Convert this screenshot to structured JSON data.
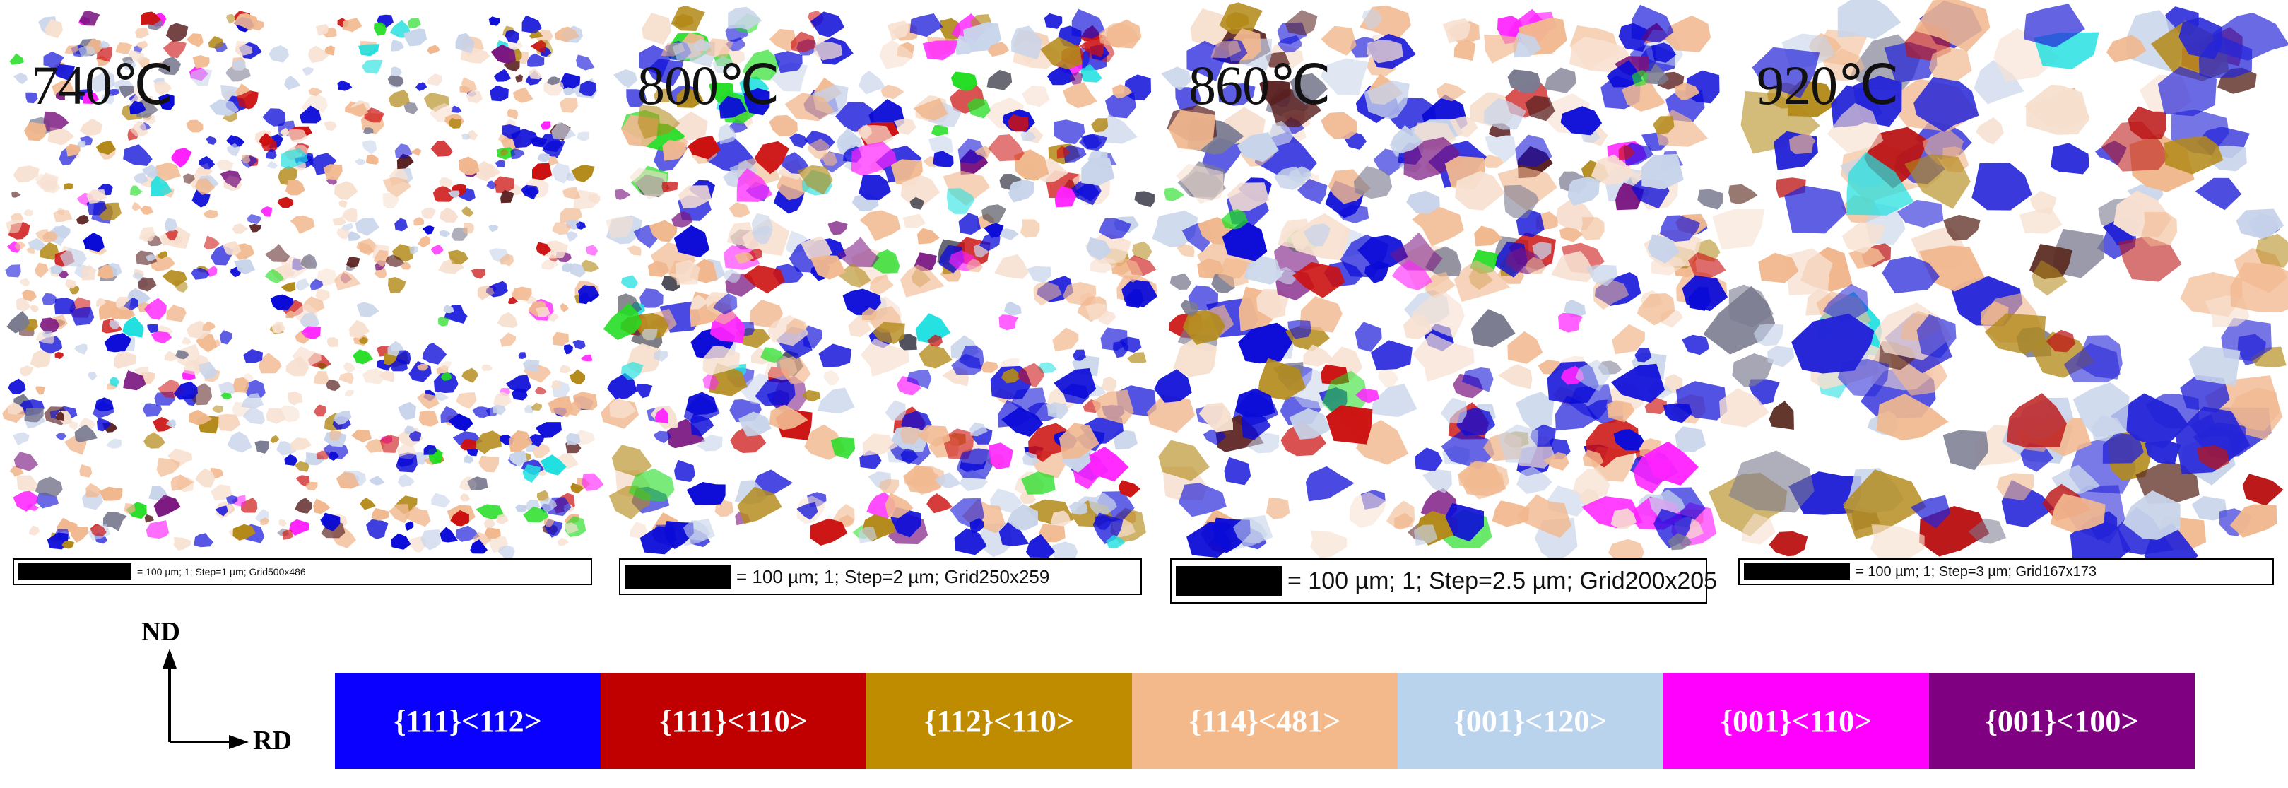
{
  "panels": [
    {
      "label": "740℃",
      "scale_text": "= 100 µm; 1; Step=1 µm; Grid500x486",
      "colors": {
        "#0b0bd8": 0.14,
        "#f1b88f": 0.14,
        "#c8d4ea": 0.1,
        "#cc1111": 0.04,
        "#b38a1a": 0.04,
        "#ff22ff": 0.02,
        "#7a1580": 0.02,
        "#22dd22": 0.01,
        "#22e0e0": 0.01,
        "#5a2020": 0.02,
        "#7a7a90": 0.02,
        "#f7e0d0": 0.1
      }
    },
    {
      "label": "800℃",
      "scale_text": "= 100 µm; 1; Step=2 µm; Grid250x259",
      "colors": {
        "#0b0bd8": 0.2,
        "#f1b88f": 0.14,
        "#c8d4ea": 0.12,
        "#cc1111": 0.05,
        "#b38a1a": 0.05,
        "#ff22ff": 0.02,
        "#7a1580": 0.02,
        "#22dd22": 0.02,
        "#22e0e0": 0.01,
        "#3a3a48": 0.02,
        "#f7e0d0": 0.08
      }
    },
    {
      "label": "860℃",
      "scale_text": "= 100 µm; 1; Step=2.5 µm; Grid200x205",
      "colors": {
        "#0b0bd8": 0.2,
        "#f1b88f": 0.15,
        "#c8d4ea": 0.1,
        "#cc1111": 0.04,
        "#b38a1a": 0.04,
        "#ff22ff": 0.02,
        "#7a1580": 0.01,
        "#22dd22": 0.01,
        "#5a2020": 0.02,
        "#7a7a90": 0.03,
        "#f7e0d0": 0.08
      }
    },
    {
      "label": "920℃",
      "scale_text": "= 100 µm; 1; Step=3 µm; Grid167x173",
      "colors": {
        "#2424d8": 0.2,
        "#f1b88f": 0.14,
        "#c8d4ea": 0.1,
        "#bb1515": 0.05,
        "#b38a1a": 0.05,
        "#22e0e0": 0.01,
        "#5a2a20": 0.03,
        "#7a7a90": 0.04,
        "#f7e0d0": 0.08
      }
    }
  ],
  "axes": {
    "vertical": "ND",
    "horizontal": "RD"
  },
  "legend": [
    {
      "label": "{111}<112>",
      "color": "#0a00ff"
    },
    {
      "label": "{111}<110>",
      "color": "#c00000"
    },
    {
      "label": "{112}<110>",
      "color": "#bf8c00"
    },
    {
      "label": "{114}<481>",
      "color": "#f3b98a"
    },
    {
      "label": "{001}<120>",
      "color": "#b9d3ec"
    },
    {
      "label": "{001}<110>",
      "color": "#ff00ff"
    },
    {
      "label": "{001}<100>",
      "color": "#7f0080"
    }
  ]
}
